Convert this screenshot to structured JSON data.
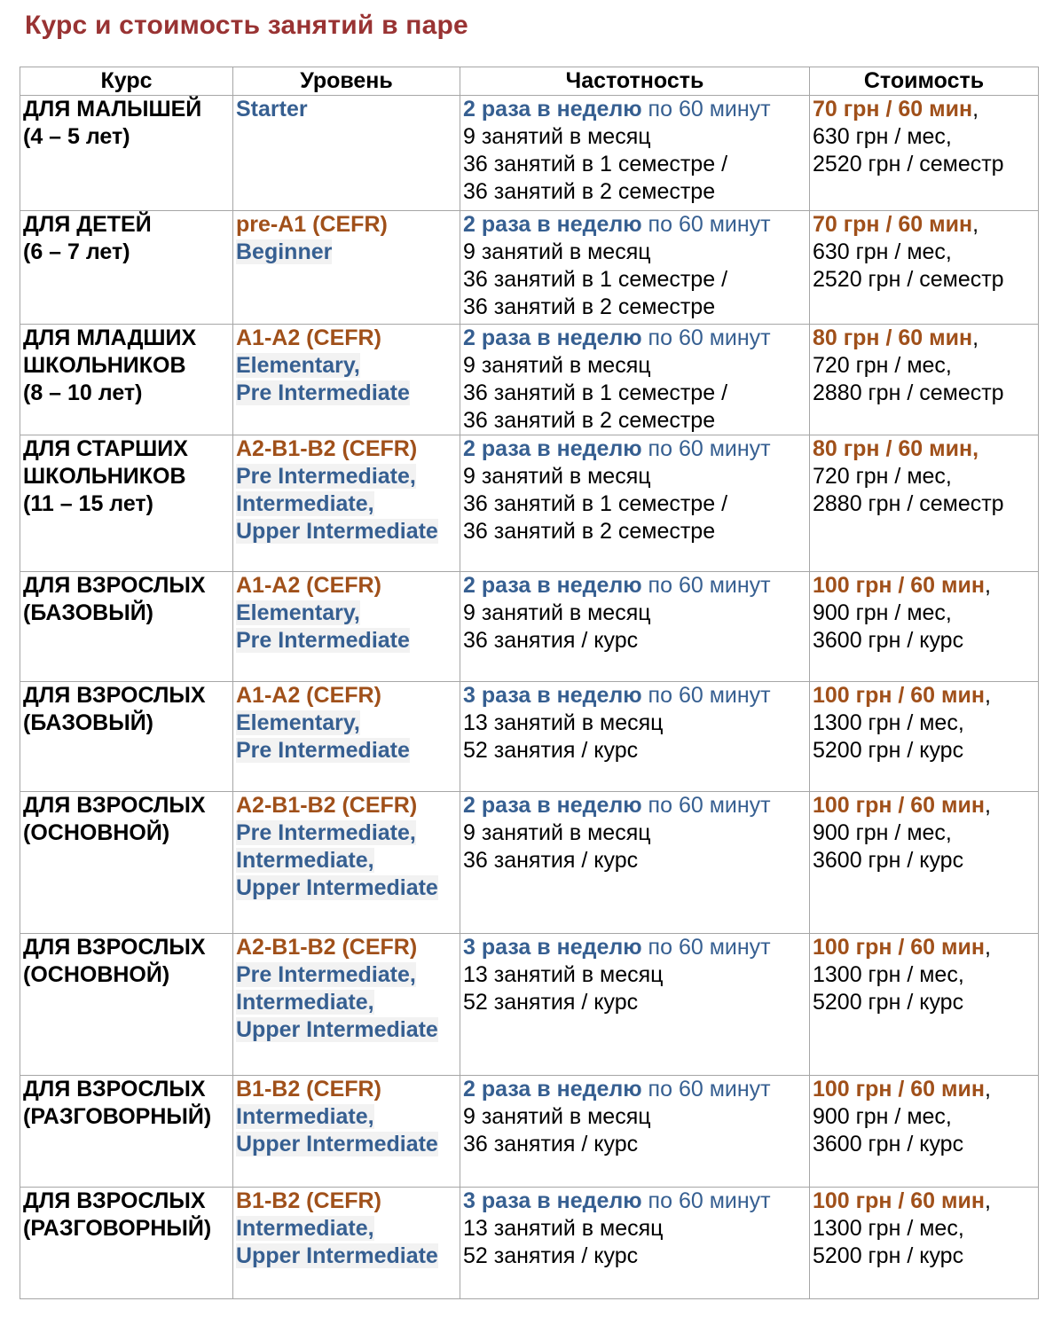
{
  "title": "Курс и стоимость занятий в паре",
  "headers": {
    "course": "Курс",
    "level": "Уровень",
    "frequency": "Частотность",
    "price": "Стоимость"
  },
  "colors": {
    "title": "#993333",
    "level_code": "#a0501a",
    "blue": "#365f91",
    "price": "#a0501a"
  },
  "rows": [
    {
      "course": [
        "ДЛЯ МАЛЫШЕЙ",
        "(4 – 5 лет)"
      ],
      "level_code": "",
      "level_names": [
        "Starter"
      ],
      "freq_strong": "2 раза в неделю",
      "freq_rest": " по 60 минут",
      "freq_lines": [
        "9 занятий в месяц",
        "36 занятий в 1 семестре /",
        "36 занятий в 2 семестре"
      ],
      "price_strong": "70 грн / 60 мин",
      "price_sep": ",",
      "price_lines": [
        "630 грн / мес,",
        "2520 грн / семестр"
      ]
    },
    {
      "course": [
        "ДЛЯ ДЕТЕЙ",
        "(6 – 7 лет)"
      ],
      "level_code": "pre-A1 (CEFR)",
      "level_names": [
        "Beginner"
      ],
      "freq_strong": "2 раза в неделю",
      "freq_rest": " по 60 минут",
      "freq_lines": [
        "9 занятий в месяц",
        "36 занятий в 1 семестре /",
        "36 занятий в 2 семестре"
      ],
      "price_strong": "70 грн / 60 мин",
      "price_sep": ",",
      "price_lines": [
        "630 грн / мес,",
        "2520 грн / семестр"
      ]
    },
    {
      "course": [
        "ДЛЯ МЛАДШИХ",
        "ШКОЛЬНИКОВ",
        "(8 – 10 лет)"
      ],
      "level_code": "A1-A2 (CEFR)",
      "level_names": [
        "Elementary,",
        "Pre Intermediate"
      ],
      "freq_strong": "2 раза в неделю",
      "freq_rest": " по 60 минут",
      "freq_lines": [
        "9 занятий в месяц",
        "36 занятий в 1 семестре /",
        "36 занятий в 2 семестре"
      ],
      "price_strong": "80 грн / 60 мин",
      "price_sep": ",",
      "price_lines": [
        "720 грн / мес,",
        "2880 грн / семестр"
      ]
    },
    {
      "course": [
        "ДЛЯ СТАРШИХ",
        "ШКОЛЬНИКОВ",
        "(11 – 15 лет)"
      ],
      "level_code": "A2-B1-B2 (CEFR)",
      "level_names": [
        "Pre Intermediate,",
        "Intermediate,",
        "Upper Intermediate"
      ],
      "freq_strong": "2 раза в неделю",
      "freq_rest": " по 60 минут",
      "freq_lines": [
        "9 занятий в месяц",
        "36 занятий в 1 семестре /",
        "36 занятий в 2 семестре"
      ],
      "price_strong": "80 грн / 60 мин,",
      "price_sep": "",
      "price_lines": [
        "720 грн / мес,",
        "2880 грн / семестр"
      ]
    },
    {
      "course": [
        "ДЛЯ ВЗРОСЛЫХ",
        "(БАЗОВЫЙ)"
      ],
      "level_code": "A1-A2 (CEFR)",
      "level_names": [
        "Elementary,",
        "Pre Intermediate"
      ],
      "freq_strong": "2 раза в неделю",
      "freq_rest": " по 60 минут",
      "freq_lines": [
        "9 занятий в месяц",
        "36 занятия / курс"
      ],
      "price_strong": "100 грн / 60 мин",
      "price_sep": ",",
      "price_lines": [
        "900 грн / мес,",
        "3600 грн / курс"
      ]
    },
    {
      "course": [
        "ДЛЯ ВЗРОСЛЫХ",
        "(БАЗОВЫЙ)"
      ],
      "level_code": "A1-A2 (CEFR)",
      "level_names": [
        "Elementary,",
        "Pre Intermediate"
      ],
      "freq_strong": "3 раза в неделю",
      "freq_rest": " по 60 минут",
      "freq_lines": [
        "13 занятий в месяц",
        "52 занятия / курс"
      ],
      "price_strong": "100 грн / 60 мин",
      "price_sep": ",",
      "price_lines": [
        "1300 грн / мес,",
        "5200 грн / курс"
      ]
    },
    {
      "course": [
        "ДЛЯ ВЗРОСЛЫХ",
        "(ОСНОВНОЙ)"
      ],
      "level_code": "A2-B1-B2 (CEFR)",
      "level_names": [
        "Pre Intermediate,",
        "Intermediate,",
        "Upper Intermediate"
      ],
      "freq_strong": "2 раза в неделю",
      "freq_rest": " по 60 минут",
      "freq_lines": [
        "9 занятий в месяц",
        "36 занятия / курс"
      ],
      "price_strong": "100 грн / 60 мин",
      "price_sep": ",",
      "price_lines": [
        "900 грн / мес,",
        "3600 грн / курс"
      ]
    },
    {
      "course": [
        "ДЛЯ ВЗРОСЛЫХ",
        "(ОСНОВНОЙ)"
      ],
      "level_code": "A2-B1-B2 (CEFR)",
      "level_names": [
        "Pre Intermediate,",
        "Intermediate,",
        "Upper Intermediate"
      ],
      "freq_strong": "3 раза в неделю",
      "freq_rest": " по 60 минут",
      "freq_lines": [
        "13 занятий в месяц",
        "52 занятия / курс"
      ],
      "price_strong": "100 грн / 60 мин",
      "price_sep": ",",
      "price_lines": [
        "1300 грн / мес,",
        "5200 грн / курс"
      ]
    },
    {
      "course": [
        "ДЛЯ ВЗРОСЛЫХ",
        "(РАЗГОВОРНЫЙ)"
      ],
      "level_code": "B1-B2 (CEFR)",
      "level_names": [
        "Intermediate,",
        "Upper Intermediate"
      ],
      "freq_strong": "2 раза в неделю",
      "freq_rest": " по 60 минут",
      "freq_lines": [
        "9 занятий в месяц",
        "36 занятия / курс"
      ],
      "price_strong": "100 грн / 60 мин",
      "price_sep": ",",
      "price_lines": [
        "900 грн / мес,",
        "3600 грн / курс"
      ]
    },
    {
      "course": [
        "ДЛЯ ВЗРОСЛЫХ",
        "(РАЗГОВОРНЫЙ)"
      ],
      "level_code": "B1-B2 (CEFR)",
      "level_names": [
        "Intermediate,",
        "Upper Intermediate"
      ],
      "freq_strong": "3 раза в неделю",
      "freq_rest": " по 60 минут",
      "freq_lines": [
        "13 занятий в месяц",
        "52 занятия / курс"
      ],
      "price_strong": "100 грн / 60 мин",
      "price_sep": ",",
      "price_lines": [
        "1300 грн / мес,",
        "5200 грн / курс"
      ]
    }
  ]
}
